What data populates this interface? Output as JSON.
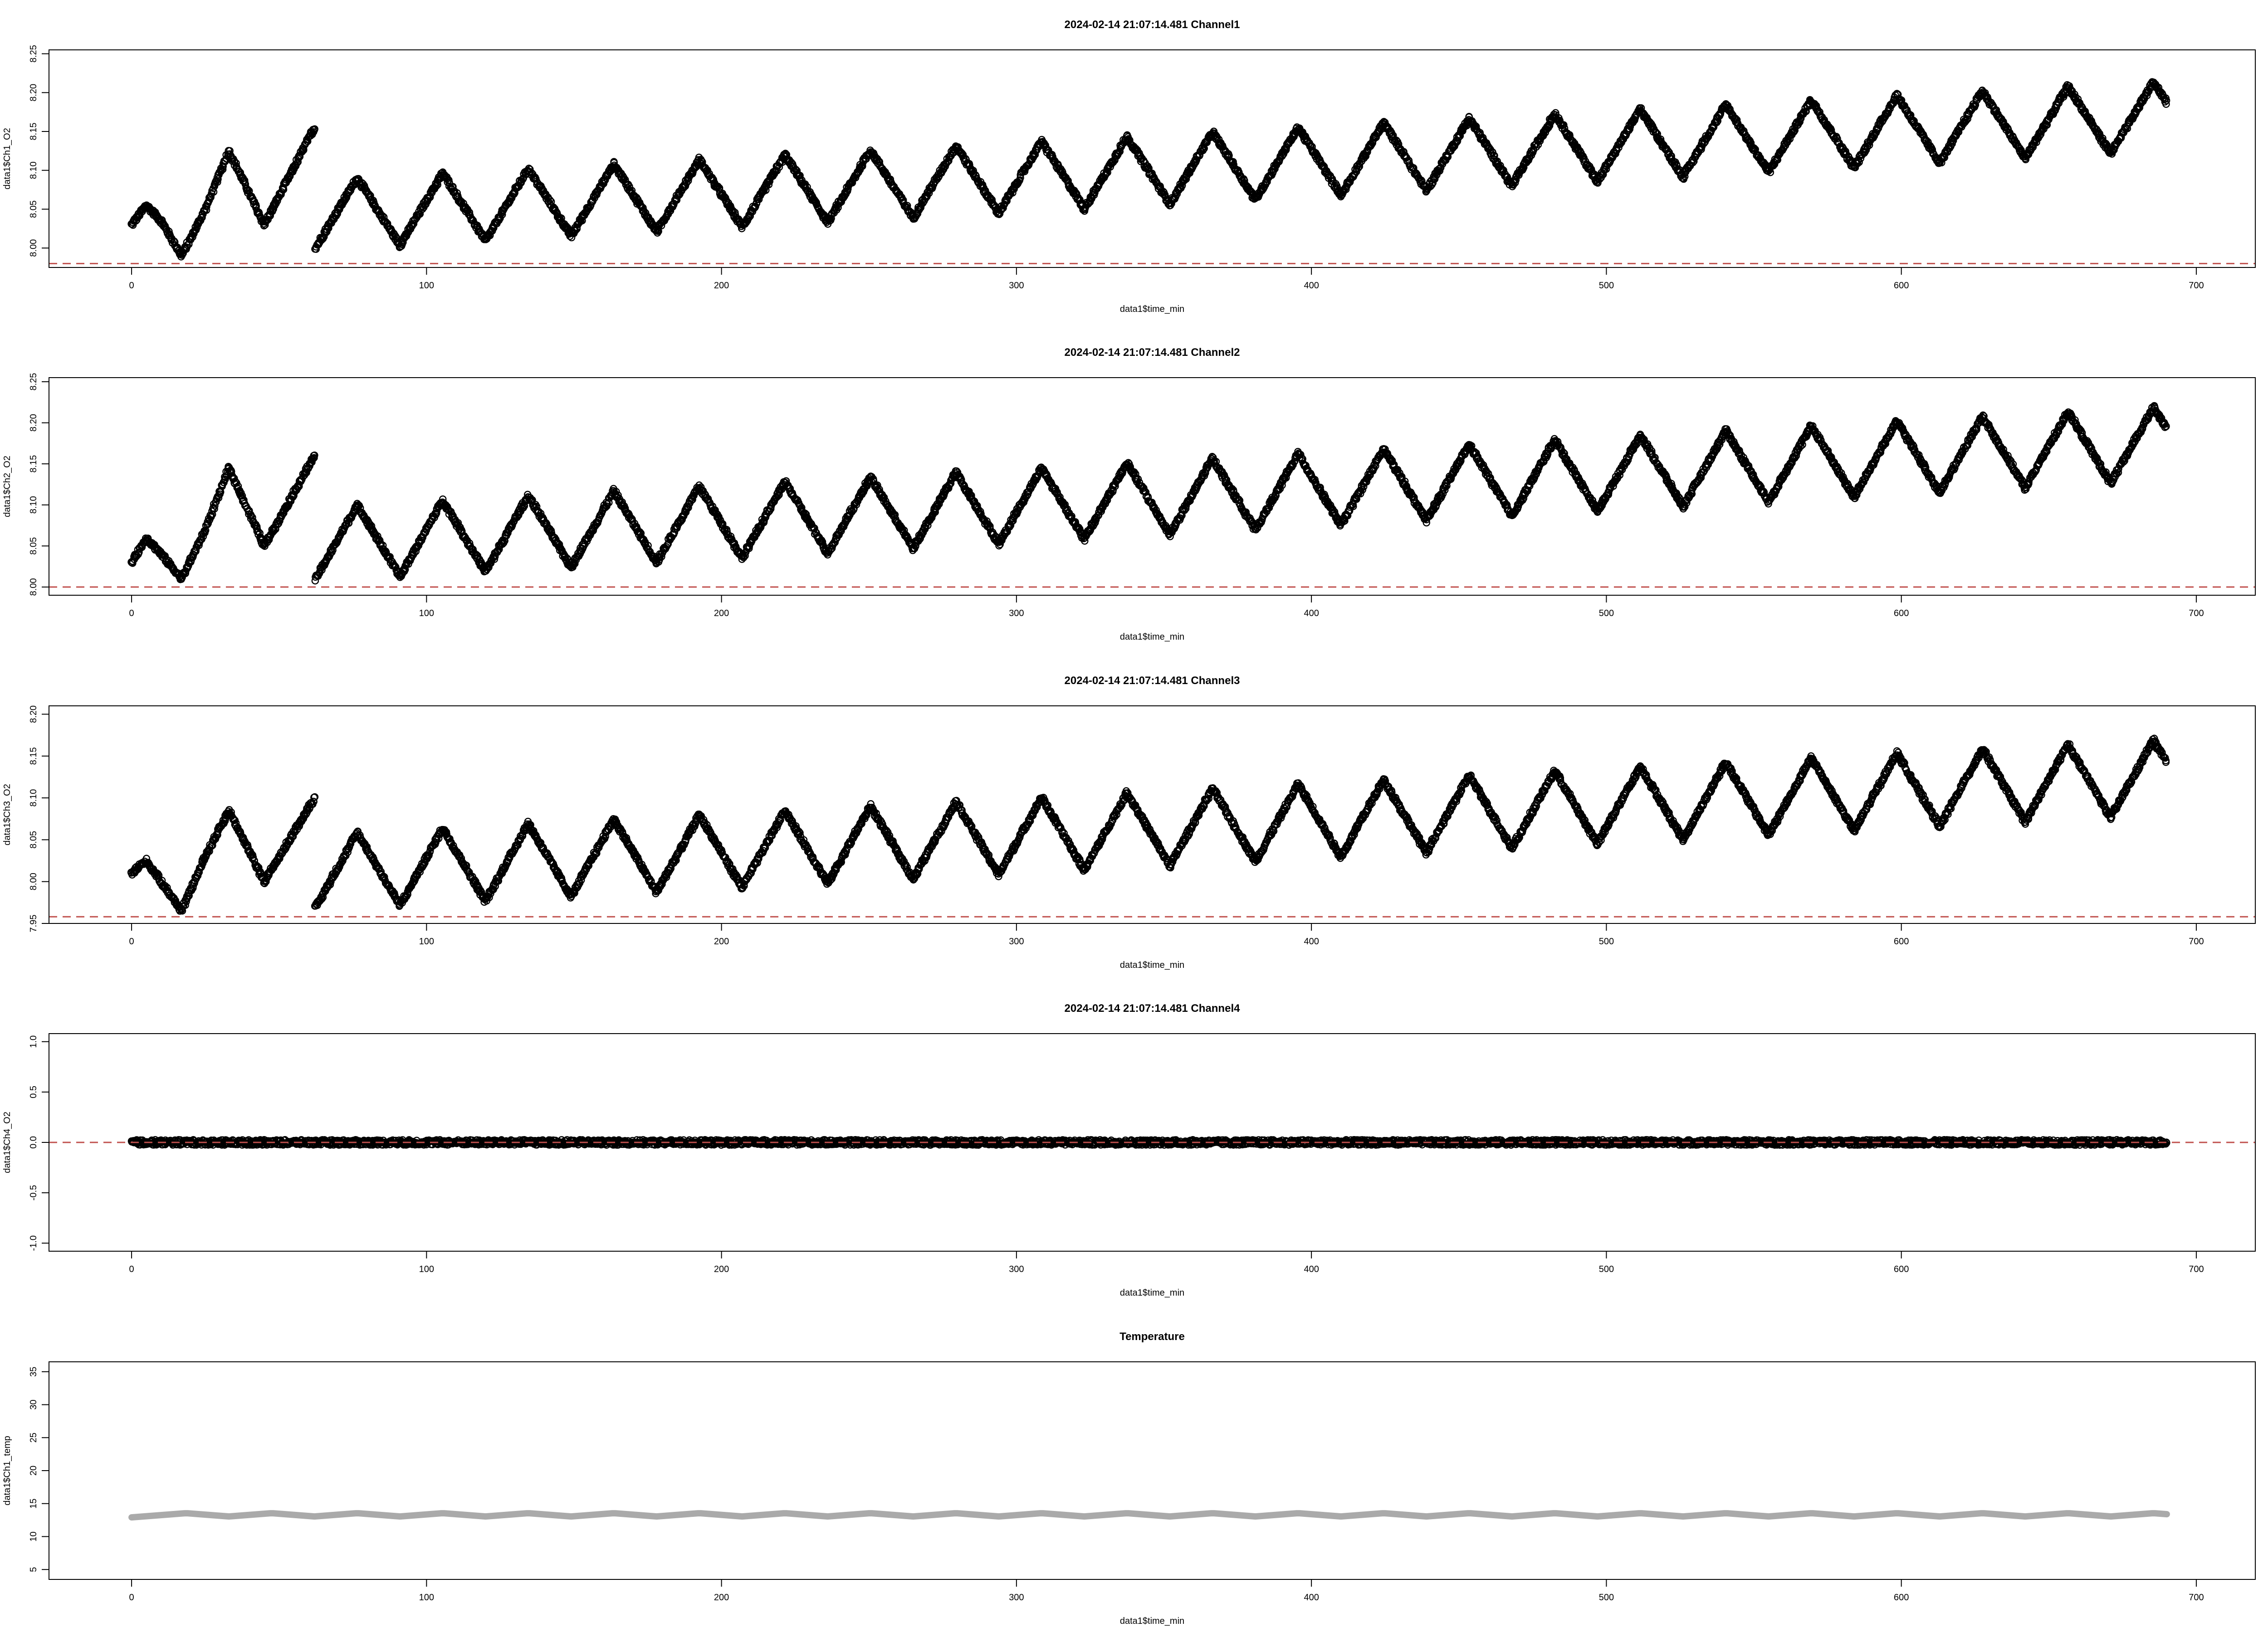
{
  "chart_data": [
    {
      "type": "scatter",
      "title": "2024-02-14 21:07:14.481 Channel1",
      "xlabel": "data1$time_min",
      "ylabel": "data1$Ch1_O2",
      "xlim": [
        -28,
        720
      ],
      "ylim": [
        7.975,
        8.255
      ],
      "xticks": [
        "0",
        "100",
        "200",
        "300",
        "400",
        "500",
        "600",
        "700"
      ],
      "yticks": [
        "8.00",
        "8.05",
        "8.10",
        "8.15",
        "8.20",
        "8.25"
      ],
      "reference_line": 7.98,
      "reference_color": "#c0504d",
      "point_color": "#000000",
      "x_range": [
        0,
        690
      ],
      "trend": {
        "start": 8.03,
        "end": 8.17
      },
      "oscillation": {
        "period_min": 29,
        "amplitude": 0.045
      },
      "start_segment": [
        [
          0,
          8.03
        ],
        [
          5,
          8.055
        ],
        [
          10,
          8.035
        ],
        [
          17,
          7.99
        ],
        [
          25,
          8.05
        ],
        [
          33,
          8.125
        ],
        [
          45,
          8.03
        ],
        [
          62,
          8.155
        ]
      ]
    },
    {
      "type": "scatter",
      "title": "2024-02-14 21:07:14.481 Channel2",
      "xlabel": "data1$time_min",
      "ylabel": "data1$Ch2_O2",
      "xlim": [
        -28,
        720
      ],
      "ylim": [
        7.99,
        8.255
      ],
      "xticks": [
        "0",
        "100",
        "200",
        "300",
        "400",
        "500",
        "600",
        "700"
      ],
      "yticks": [
        "8.00",
        "8.05",
        "8.10",
        "8.15",
        "8.20",
        "8.25"
      ],
      "reference_line": 8.0,
      "reference_color": "#c0504d",
      "point_color": "#000000",
      "x_range": [
        0,
        690
      ],
      "trend": {
        "start": 8.04,
        "end": 8.175
      },
      "oscillation": {
        "period_min": 29,
        "amplitude": 0.045
      },
      "start_segment": [
        [
          0,
          8.03
        ],
        [
          5,
          8.06
        ],
        [
          10,
          8.04
        ],
        [
          17,
          8.01
        ],
        [
          25,
          8.07
        ],
        [
          33,
          8.145
        ],
        [
          45,
          8.05
        ],
        [
          62,
          8.16
        ]
      ]
    },
    {
      "type": "scatter",
      "title": "2024-02-14 21:07:14.481 Channel3",
      "xlabel": "data1$time_min",
      "ylabel": "data1$Ch3_O2",
      "xlim": [
        -28,
        720
      ],
      "ylim": [
        7.95,
        8.21
      ],
      "xticks": [
        "0",
        "100",
        "200",
        "300",
        "400",
        "500",
        "600",
        "700"
      ],
      "yticks": [
        "7.95",
        "8.00",
        "8.05",
        "8.10",
        "8.15",
        "8.20"
      ],
      "reference_line": 7.958,
      "reference_color": "#c0504d",
      "point_color": "#000000",
      "x_range": [
        0,
        690
      ],
      "trend": {
        "start": 8.0,
        "end": 8.125
      },
      "oscillation": {
        "period_min": 29,
        "amplitude": 0.045
      },
      "start_segment": [
        [
          0,
          8.01
        ],
        [
          5,
          8.025
        ],
        [
          10,
          8.0
        ],
        [
          17,
          7.965
        ],
        [
          25,
          8.03
        ],
        [
          33,
          8.085
        ],
        [
          45,
          8.0
        ],
        [
          62,
          8.1
        ]
      ]
    },
    {
      "type": "scatter",
      "title": "2024-02-14 21:07:14.481 Channel4",
      "xlabel": "data1$time_min",
      "ylabel": "data1$Ch4_O2",
      "xlim": [
        -28,
        720
      ],
      "ylim": [
        -1.08,
        1.08
      ],
      "xticks": [
        "0",
        "100",
        "200",
        "300",
        "400",
        "500",
        "600",
        "700"
      ],
      "yticks": [
        "-1.0",
        "-0.5",
        "0.0",
        "0.5",
        "1.0"
      ],
      "reference_line": 0.0,
      "reference_color": "#c0504d",
      "point_color": "#000000",
      "x_range": [
        0,
        690
      ],
      "trend": {
        "start": 0.0,
        "end": 0.0
      },
      "oscillation": {
        "period_min": 29,
        "amplitude": 0.0
      }
    },
    {
      "type": "line",
      "title": "Temperature",
      "xlabel": "data1$time_min",
      "ylabel": "data1$Ch1_temp",
      "xlim": [
        -28,
        720
      ],
      "ylim": [
        3.5,
        36.5
      ],
      "xticks": [
        "0",
        "100",
        "200",
        "300",
        "400",
        "500",
        "600",
        "700"
      ],
      "yticks": [
        "5",
        "10",
        "15",
        "20",
        "25",
        "30",
        "35"
      ],
      "line_color": "#aaaaaa",
      "x_range": [
        0,
        690
      ],
      "trend": {
        "start": 13.3,
        "end": 13.3
      },
      "oscillation": {
        "period_min": 29,
        "amplitude": 0.25
      }
    }
  ]
}
